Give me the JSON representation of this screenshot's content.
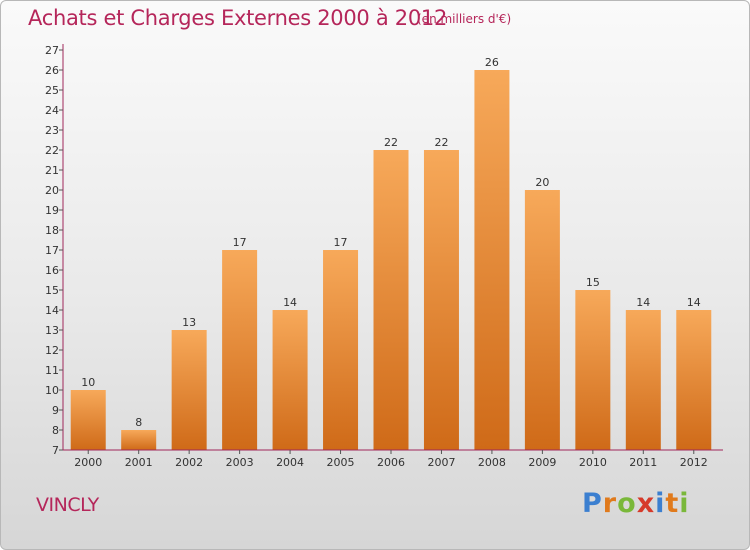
{
  "title": "Achats et Charges Externes 2000 à 2012",
  "subtitle": "(en milliers d'€)",
  "commune": "VINCLY",
  "logo": {
    "letters": [
      "P",
      "r",
      "o",
      "x",
      "i",
      "t",
      "i"
    ],
    "colors": [
      "#3b7fd0",
      "#e07a1c",
      "#7ab83a",
      "#d63a2a",
      "#3b7fd0",
      "#e07a1c",
      "#7ab83a"
    ]
  },
  "colors": {
    "title": "#b5265a",
    "bar_top": "#f7a95a",
    "bar_bottom": "#cf6a18",
    "axis": "#a0275a"
  },
  "chart_data": {
    "type": "bar",
    "categories": [
      "2000",
      "2001",
      "2002",
      "2003",
      "2004",
      "2005",
      "2006",
      "2007",
      "2008",
      "2009",
      "2010",
      "2011",
      "2012"
    ],
    "values": [
      10,
      8,
      13,
      17,
      14,
      17,
      22,
      22,
      26,
      20,
      15,
      14,
      14
    ],
    "title": "Achats et Charges Externes 2000 à 2012",
    "xlabel": "",
    "ylabel": "",
    "ylim": [
      7,
      27
    ],
    "yticks": [
      7,
      8,
      9,
      10,
      11,
      12,
      13,
      14,
      15,
      16,
      17,
      18,
      19,
      20,
      21,
      22,
      23,
      24,
      25,
      26,
      27
    ],
    "grid": false,
    "data_labels": true
  }
}
